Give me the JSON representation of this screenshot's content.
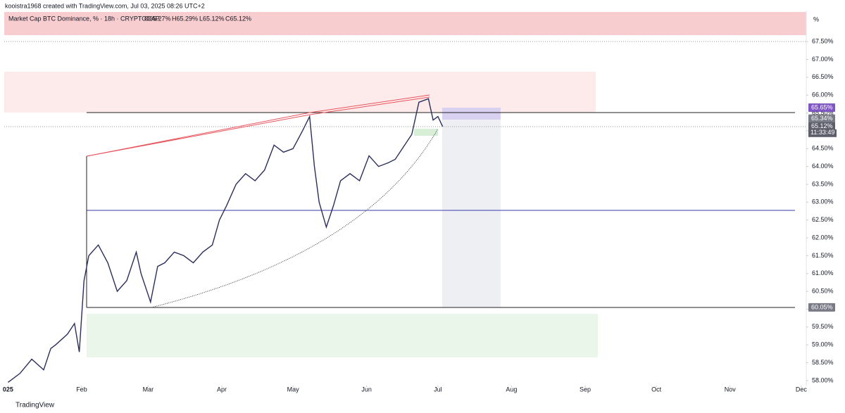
{
  "header": "kooistra1968 created with TradingView.com, Jul 03, 2025 08:26 UTC+2",
  "footer": "TradingView",
  "chart_data": {
    "type": "line",
    "title": "Market Cap BTC Dominance, % · 18h · CRYPTOCAP",
    "ohlc": [
      "O65.27%",
      "H65.29%",
      "L65.12%",
      "C65.12%"
    ],
    "unit": "%",
    "x": [
      0,
      5,
      10,
      15,
      18,
      20,
      25,
      28,
      30,
      32,
      34,
      38,
      42,
      46,
      50,
      54,
      56,
      60,
      63,
      66,
      70,
      74,
      78,
      82,
      86,
      89,
      92,
      96,
      100,
      104,
      108,
      112,
      116,
      120,
      124,
      127,
      129,
      131,
      134,
      137,
      140,
      144,
      148,
      152,
      156,
      160,
      163,
      166,
      170,
      173,
      177,
      179,
      181,
      183
    ],
    "series": [
      {
        "name": "Market Cap BTC Dominance",
        "color": "#2a2e5a",
        "values": [
          57.95,
          58.2,
          58.6,
          58.3,
          58.9,
          59.0,
          59.3,
          59.6,
          58.8,
          60.8,
          61.5,
          61.8,
          61.3,
          60.5,
          60.8,
          61.6,
          61.0,
          60.2,
          61.2,
          61.3,
          61.6,
          61.5,
          61.3,
          61.6,
          61.8,
          62.5,
          62.9,
          63.5,
          63.8,
          63.6,
          63.9,
          64.6,
          64.4,
          64.5,
          65.0,
          65.4,
          64.0,
          63.0,
          62.3,
          62.9,
          63.6,
          63.8,
          63.6,
          64.3,
          64.0,
          64.1,
          64.2,
          64.5,
          64.9,
          65.8,
          65.9,
          65.3,
          65.4,
          65.12
        ]
      }
    ],
    "xlim": [
      -3.38,
      336.1
    ],
    "ylim": [
      57.86,
      68.37
    ],
    "xticks": [
      {
        "value": 0,
        "label": "025"
      },
      {
        "value": 31,
        "label": "Feb"
      },
      {
        "value": 59,
        "label": "Mar"
      },
      {
        "value": 90,
        "label": "Apr"
      },
      {
        "value": 120,
        "label": "May"
      },
      {
        "value": 151,
        "label": "Jun"
      },
      {
        "value": 181,
        "label": "Jul"
      },
      {
        "value": 212,
        "label": "Aug"
      },
      {
        "value": 243,
        "label": "Sep"
      },
      {
        "value": 273,
        "label": "Oct"
      },
      {
        "value": 304,
        "label": "Nov"
      },
      {
        "value": 334,
        "label": "Dec"
      }
    ],
    "yticks": [
      {
        "value": 58,
        "label": "58.00%"
      },
      {
        "value": 58.5,
        "label": "58.50%"
      },
      {
        "value": 59,
        "label": "59.00%"
      },
      {
        "value": 59.5,
        "label": "59.50%"
      },
      {
        "value": 60,
        "label": "60.00%"
      },
      {
        "value": 60.5,
        "label": "60.50%"
      },
      {
        "value": 61,
        "label": "61.00%"
      },
      {
        "value": 61.5,
        "label": "61.50%"
      },
      {
        "value": 62,
        "label": "62.00%"
      },
      {
        "value": 62.5,
        "label": "62.50%"
      },
      {
        "value": 63,
        "label": "63.00%"
      },
      {
        "value": 63.5,
        "label": "63.50%"
      },
      {
        "value": 64,
        "label": "64.00%"
      },
      {
        "value": 64.5,
        "label": "64.50%"
      },
      {
        "value": 65,
        "label": "65.00%"
      },
      {
        "value": 65.5,
        "label": "65.50%"
      },
      {
        "value": 66,
        "label": "66.00%"
      },
      {
        "value": 66.5,
        "label": "66.50%"
      },
      {
        "value": 67,
        "label": "67.00%"
      },
      {
        "value": 67.5,
        "label": "67.50%"
      }
    ],
    "price_labels": [
      {
        "value": 65.65,
        "label": "65.65%",
        "color": "#7e57c2"
      },
      {
        "value": 65.34,
        "label": "65.34%",
        "color": "#787b86"
      },
      {
        "value": 65.12,
        "label": "65.12%",
        "color": "#5d606b"
      },
      {
        "value": 60.05,
        "label": "60.05%",
        "color": "#787b86"
      }
    ],
    "countdown": "11:33:49"
  }
}
